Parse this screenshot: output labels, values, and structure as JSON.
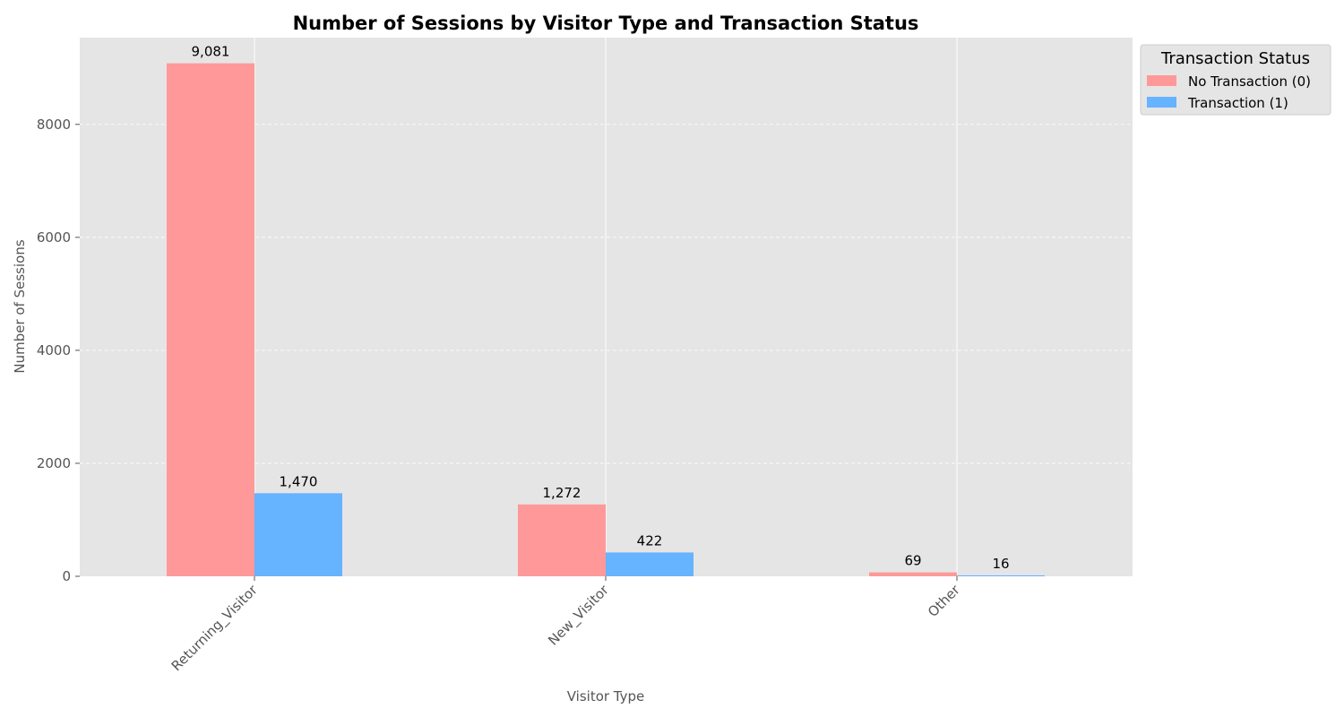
{
  "chart_data": {
    "type": "bar",
    "title": "Number of Sessions by Visitor Type and Transaction Status",
    "xlabel": "Visitor Type",
    "ylabel": "Number of Sessions",
    "categories": [
      "Returning_Visitor",
      "New_Visitor",
      "Other"
    ],
    "series": [
      {
        "name": "No Transaction (0)",
        "values": [
          9081,
          1272,
          69
        ],
        "labels": [
          "9,081",
          "1,272",
          "69"
        ],
        "color": "#ff9999"
      },
      {
        "name": "Transaction (1)",
        "values": [
          1470,
          422,
          16
        ],
        "labels": [
          "1,470",
          "422",
          "16"
        ],
        "color": "#66b3ff"
      }
    ],
    "ylim": [
      0,
      9535
    ],
    "yticks": [
      0,
      2000,
      4000,
      6000,
      8000
    ],
    "ytick_labels": [
      "0",
      "2000",
      "4000",
      "6000",
      "8000"
    ],
    "grid": true,
    "legend": {
      "title": "Transaction Status",
      "placement": "outside-top-right"
    },
    "background_color": "#e5e5e5"
  }
}
